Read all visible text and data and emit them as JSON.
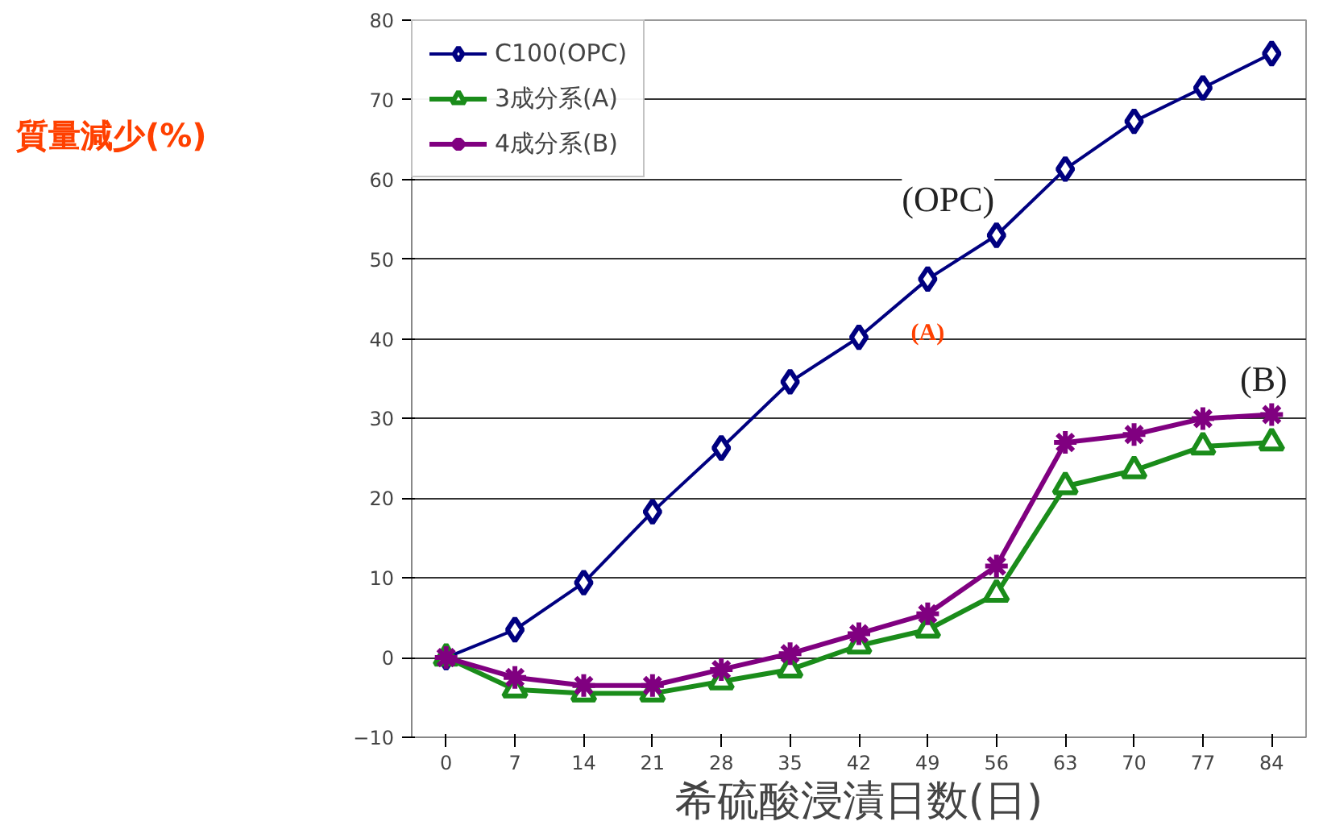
{
  "chart_data": {
    "type": "line",
    "xlabel": "希硫酸浸漬日数(日)",
    "ylabel": "質量減少(%)",
    "categories": [
      "0",
      "7",
      "14",
      "21",
      "28",
      "35",
      "42",
      "49",
      "56",
      "63",
      "70",
      "77",
      "84"
    ],
    "series": [
      {
        "name": "C100(OPC)",
        "color": "#000080",
        "marker": "diamond",
        "values": [
          0,
          3.5,
          9.4,
          18.3,
          26.3,
          34.6,
          40.2,
          47.5,
          53,
          61.3,
          67.3,
          71.5,
          75.8
        ]
      },
      {
        "name": "3成分系(A)",
        "color": "#1a8c1a",
        "marker": "triangle",
        "values": [
          0,
          -4,
          -4.5,
          -4.5,
          -3,
          -1.5,
          1.5,
          3.5,
          8,
          21.5,
          23.5,
          26.5,
          27
        ]
      },
      {
        "name": "4成分系(B)",
        "color": "#800080",
        "marker": "cross",
        "values": [
          0,
          -2.5,
          -3.5,
          -3.5,
          -1.5,
          0.5,
          3,
          5.5,
          11.5,
          27,
          28,
          30,
          30.5
        ]
      }
    ],
    "ylim": [
      -10,
      80
    ],
    "yticks": [
      -10,
      0,
      10,
      20,
      30,
      40,
      50,
      60,
      70,
      80
    ],
    "grid": "y",
    "legend": "top left",
    "annotations": [
      {
        "text": "(OPC)",
        "x": "56",
        "y": 53
      },
      {
        "text": "(A)",
        "x": "49",
        "y": 47.5
      },
      {
        "text": "(B)",
        "x": "84",
        "y": 30.5
      }
    ]
  }
}
